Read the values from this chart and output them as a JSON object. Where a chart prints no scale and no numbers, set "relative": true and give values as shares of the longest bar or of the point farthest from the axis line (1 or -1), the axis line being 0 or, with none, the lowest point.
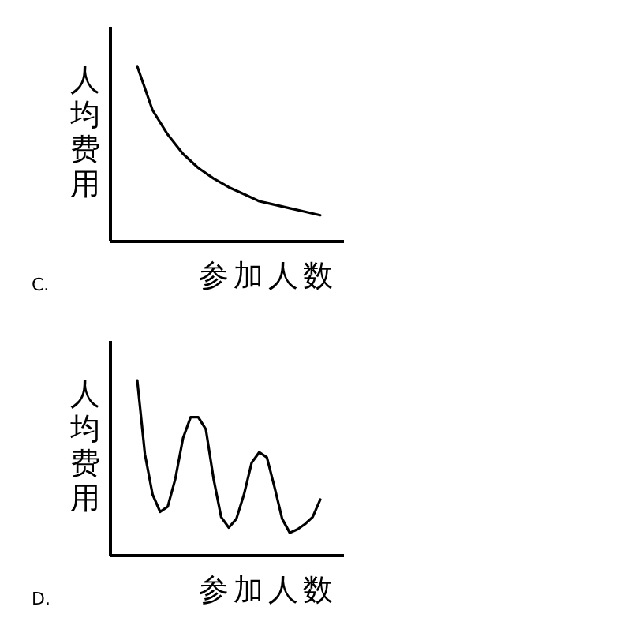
{
  "chart_data": [
    {
      "type": "line",
      "relative": true,
      "xlabel": "参加人数",
      "ylabel": "人均费用",
      "annotations": [
        "C."
      ],
      "categories": [
        null,
        null,
        null,
        null,
        null,
        null,
        null,
        null,
        null,
        null,
        null,
        null,
        null
      ],
      "series": [
        {
          "color": "#000000",
          "values": [
            1,
            0.75,
            0.61,
            0.5,
            0.42,
            0.36,
            0.31,
            0.27,
            0.23,
            0.21,
            0.19,
            0.17,
            0.15
          ]
        }
      ]
    },
    {
      "type": "line",
      "relative": true,
      "xlabel": "参加人数",
      "ylabel": "人均费用",
      "annotations": [
        "D."
      ],
      "categories": [
        null,
        null,
        null,
        null,
        null,
        null,
        null,
        null,
        null,
        null,
        null,
        null,
        null,
        null,
        null,
        null,
        null,
        null,
        null,
        null,
        null,
        null,
        null,
        null,
        null
      ],
      "series": [
        {
          "color": "#000000",
          "values": [
            1,
            0.58,
            0.35,
            0.25,
            0.28,
            0.44,
            0.67,
            0.79,
            0.79,
            0.72,
            0.44,
            0.22,
            0.16,
            0.21,
            0.35,
            0.53,
            0.59,
            0.56,
            0.39,
            0.21,
            0.13,
            0.15,
            0.18,
            0.22,
            0.32
          ]
        }
      ]
    }
  ]
}
